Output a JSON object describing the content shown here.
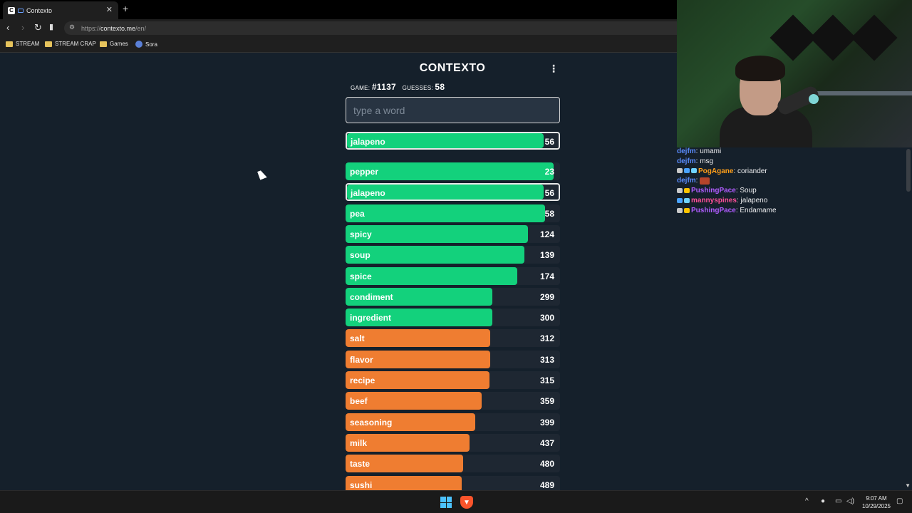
{
  "browser": {
    "tab_title": "Contexto",
    "tab_favicon": "C",
    "url_scheme": "https://",
    "url_host": "contexto.me",
    "url_path": "/en/",
    "bookmarks": [
      {
        "label": "STREAM",
        "icon": "folder-icon"
      },
      {
        "label": "STREAM CRAP",
        "icon": "folder-icon"
      },
      {
        "label": "Games",
        "icon": "folder-icon"
      },
      {
        "label": "Sora",
        "icon": "sora-icon"
      }
    ]
  },
  "game": {
    "title": "CONTEXTO",
    "game_label": "GAME:",
    "game_number": "#1137",
    "guesses_label": "GUESSES:",
    "guesses": "58",
    "input_placeholder": "type a word",
    "current": {
      "word": "jalapeno",
      "rank": "56",
      "fraction": 0.93,
      "color": "#13d17c"
    },
    "guesses_list": [
      {
        "word": "pepper",
        "rank": "23",
        "fraction": 0.97,
        "color": "#13d17c"
      },
      {
        "word": "jalapeno",
        "rank": "56",
        "fraction": 0.93,
        "color": "#13d17c",
        "highlight": true
      },
      {
        "word": "pea",
        "rank": "58",
        "fraction": 0.93,
        "color": "#13d17c"
      },
      {
        "word": "spicy",
        "rank": "124",
        "fraction": 0.85,
        "color": "#13d17c"
      },
      {
        "word": "soup",
        "rank": "139",
        "fraction": 0.835,
        "color": "#13d17c"
      },
      {
        "word": "spice",
        "rank": "174",
        "fraction": 0.8,
        "color": "#13d17c"
      },
      {
        "word": "condiment",
        "rank": "299",
        "fraction": 0.685,
        "color": "#13d17c"
      },
      {
        "word": "ingredient",
        "rank": "300",
        "fraction": 0.683,
        "color": "#13d17c"
      },
      {
        "word": "salt",
        "rank": "312",
        "fraction": 0.675,
        "color": "#ef7d31"
      },
      {
        "word": "flavor",
        "rank": "313",
        "fraction": 0.674,
        "color": "#ef7d31"
      },
      {
        "word": "recipe",
        "rank": "315",
        "fraction": 0.672,
        "color": "#ef7d31"
      },
      {
        "word": "beef",
        "rank": "359",
        "fraction": 0.635,
        "color": "#ef7d31"
      },
      {
        "word": "seasoning",
        "rank": "399",
        "fraction": 0.605,
        "color": "#ef7d31"
      },
      {
        "word": "milk",
        "rank": "437",
        "fraction": 0.578,
        "color": "#ef7d31"
      },
      {
        "word": "taste",
        "rank": "480",
        "fraction": 0.548,
        "color": "#ef7d31"
      },
      {
        "word": "sushi",
        "rank": "489",
        "fraction": 0.542,
        "color": "#ef7d31"
      }
    ]
  },
  "chat": {
    "messages": [
      {
        "user": "dejfm",
        "text": ": umami",
        "user_color": "#5b8dff",
        "badges": []
      },
      {
        "user": "dejfm",
        "text": ": msg",
        "user_color": "#5b8dff",
        "badges": []
      },
      {
        "user": "PogAgane",
        "text": ": coriander",
        "user_color": "#ff9f1a",
        "badges": [
          "#c8c8c8",
          "#4aa3ff",
          "#6fd3ff"
        ]
      },
      {
        "user": "dejfm",
        "text": ": ",
        "user_color": "#5b8dff",
        "badges": [],
        "emote": true
      },
      {
        "user": "PushingPace",
        "text": ": Soup",
        "user_color": "#b05cff",
        "badges": [
          "#c8c8c8",
          "#ffc400"
        ]
      },
      {
        "user": "mannyspines",
        "text": ": jalapeno",
        "user_color": "#ff4f9a",
        "badges": [
          "#4aa3ff",
          "#6fd3ff"
        ]
      },
      {
        "user": "PushingPace",
        "text": ": Endamame",
        "user_color": "#b05cff",
        "badges": [
          "#c8c8c8",
          "#ffc400"
        ]
      }
    ]
  },
  "taskbar": {
    "time": "9:07 AM",
    "date": "10/29/2025"
  }
}
